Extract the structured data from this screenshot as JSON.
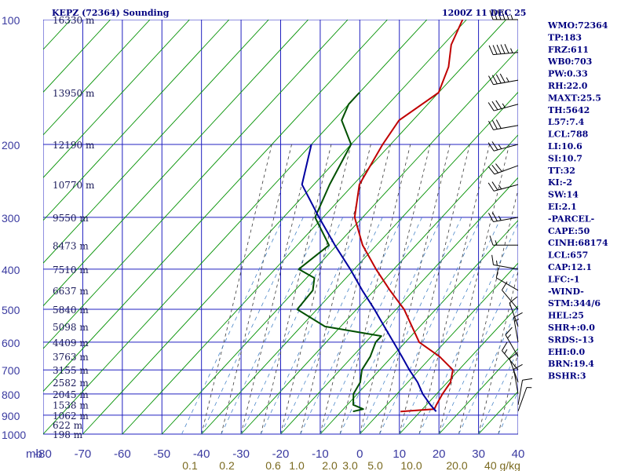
{
  "chart_data": {
    "type": "line",
    "title": "KEPZ (72364) Sounding",
    "time_label": "1200Z 11 DEC 25",
    "xlabel": "",
    "ylabel": "mb",
    "xlim": [
      -80,
      40
    ],
    "ylim": [
      1000,
      100
    ],
    "y_scale": "log",
    "grid": true,
    "pressure_ticks": [
      100,
      200,
      300,
      400,
      500,
      600,
      700,
      800,
      900,
      1000
    ],
    "temperature_ticks": [
      -80,
      -70,
      -60,
      -50,
      -40,
      -30,
      -20,
      -10,
      0,
      10,
      20,
      30,
      40
    ],
    "mixing_ratio_ticks": [
      "0.1",
      "0.2",
      "0.6",
      "1.0",
      "2.0",
      "3.0",
      "5.0",
      "10.0",
      "20.0",
      "40 g/kg"
    ],
    "height_labels": [
      {
        "p": 100,
        "label": "16330 m"
      },
      {
        "p": 150,
        "label": "13950 m"
      },
      {
        "p": 200,
        "label": "12190 m"
      },
      {
        "p": 250,
        "label": "10770 m"
      },
      {
        "p": 300,
        "label": "9550 m"
      },
      {
        "p": 350,
        "label": "8473 m"
      },
      {
        "p": 400,
        "label": "7510 m"
      },
      {
        "p": 450,
        "label": "6637 m"
      },
      {
        "p": 500,
        "label": "5840 m"
      },
      {
        "p": 550,
        "label": "5098 m"
      },
      {
        "p": 600,
        "label": "4409 m"
      },
      {
        "p": 650,
        "label": "3763 m"
      },
      {
        "p": 700,
        "label": "3155 m"
      },
      {
        "p": 750,
        "label": "2582 m"
      },
      {
        "p": 800,
        "label": "2045 m"
      },
      {
        "p": 850,
        "label": "1538 m"
      },
      {
        "p": 900,
        "label": "1062 m"
      },
      {
        "p": 950,
        "label": "622 m"
      },
      {
        "p": 1000,
        "label": "198 m"
      }
    ],
    "series": [
      {
        "name": "Temperature",
        "color": "#c00000",
        "points": [
          [
            882,
            5.0
          ],
          [
            870,
            13.0
          ],
          [
            850,
            12.5
          ],
          [
            800,
            11.5
          ],
          [
            750,
            10.8
          ],
          [
            700,
            8.5
          ],
          [
            650,
            2.0
          ],
          [
            600,
            -6.5
          ],
          [
            550,
            -12.0
          ],
          [
            500,
            -18.0
          ],
          [
            450,
            -26.0
          ],
          [
            400,
            -34.5
          ],
          [
            350,
            -43.5
          ],
          [
            300,
            -52.0
          ],
          [
            250,
            -58.5
          ],
          [
            200,
            -62.0
          ],
          [
            175,
            -63.5
          ],
          [
            150,
            -60.0
          ],
          [
            130,
            -63.5
          ],
          [
            115,
            -68.0
          ],
          [
            100,
            -71.0
          ]
        ]
      },
      {
        "name": "Dewpoint",
        "color": "#005000",
        "points": [
          [
            882,
            -7.0
          ],
          [
            870,
            -5.0
          ],
          [
            850,
            -8.5
          ],
          [
            800,
            -11.0
          ],
          [
            750,
            -12.0
          ],
          [
            700,
            -14.5
          ],
          [
            650,
            -15.5
          ],
          [
            600,
            -17.5
          ],
          [
            580,
            -17.5
          ],
          [
            550,
            -34.0
          ],
          [
            500,
            -45.0
          ],
          [
            450,
            -45.5
          ],
          [
            420,
            -48.0
          ],
          [
            400,
            -54.0
          ],
          [
            350,
            -52.0
          ],
          [
            300,
            -62.0
          ],
          [
            250,
            -66.0
          ],
          [
            200,
            -70.0
          ],
          [
            175,
            -78.0
          ],
          [
            160,
            -80.0
          ],
          [
            150,
            -80.0
          ]
        ]
      },
      {
        "name": "Parcel",
        "color": "#0000a0",
        "points": [
          [
            882,
            14.0
          ],
          [
            850,
            11.0
          ],
          [
            800,
            6.5
          ],
          [
            750,
            2.5
          ],
          [
            700,
            -2.5
          ],
          [
            650,
            -7.5
          ],
          [
            600,
            -13.0
          ],
          [
            550,
            -19.0
          ],
          [
            500,
            -25.5
          ],
          [
            450,
            -33.0
          ],
          [
            400,
            -41.0
          ],
          [
            350,
            -50.5
          ],
          [
            300,
            -61.0
          ],
          [
            250,
            -73.0
          ],
          [
            200,
            -80.0
          ]
        ]
      }
    ],
    "wind_barbs": [
      {
        "p": 100,
        "dir": 270,
        "kt": 55
      },
      {
        "p": 120,
        "dir": 265,
        "kt": 55
      },
      {
        "p": 140,
        "dir": 260,
        "kt": 45
      },
      {
        "p": 160,
        "dir": 255,
        "kt": 35
      },
      {
        "p": 180,
        "dir": 260,
        "kt": 30
      },
      {
        "p": 200,
        "dir": 255,
        "kt": 25
      },
      {
        "p": 225,
        "dir": 250,
        "kt": 30
      },
      {
        "p": 250,
        "dir": 255,
        "kt": 25
      },
      {
        "p": 300,
        "dir": 260,
        "kt": 25
      },
      {
        "p": 350,
        "dir": 270,
        "kt": 15
      },
      {
        "p": 400,
        "dir": 280,
        "kt": 15
      },
      {
        "p": 450,
        "dir": 300,
        "kt": 10
      },
      {
        "p": 500,
        "dir": 320,
        "kt": 10
      },
      {
        "p": 550,
        "dir": 340,
        "kt": 10
      },
      {
        "p": 600,
        "dir": 350,
        "kt": 15
      },
      {
        "p": 650,
        "dir": 330,
        "kt": 15
      },
      {
        "p": 700,
        "dir": 320,
        "kt": 15
      },
      {
        "p": 750,
        "dir": 340,
        "kt": 10
      },
      {
        "p": 800,
        "dir": 350,
        "kt": 10
      },
      {
        "p": 850,
        "dir": 10,
        "kt": 10
      },
      {
        "p": 880,
        "dir": 20,
        "kt": 5
      }
    ],
    "parameters": [
      "WMO:72364",
      "TP:183",
      "FRZ:611",
      "WB0:703",
      "PW:0.33",
      "RH:22.0",
      "MAXT:25.5",
      "TH:5642",
      "L57:7.4",
      "LCL:788",
      "LI:10.6",
      "SI:10.7",
      "TT:32",
      "KI:-2",
      "SW:14",
      "EI:2.1",
      "-PARCEL-",
      "CAPE:50",
      "CINH:68174",
      "LCL:657",
      "CAP:12.1",
      "LFC:-1",
      "-WIND-",
      "STM:344/6",
      "HEL:25",
      "SHR+:0.0",
      "SRDS:-13",
      "EHI:0.0",
      "BRN:19.4",
      "BSHR:3"
    ],
    "colors": {
      "grid": "#2020c0",
      "dry_adiabat": "#009000",
      "moist_adiabat": "#3a3a3a",
      "mixing_ratio": "#4a86c8",
      "text": "#000080"
    }
  }
}
